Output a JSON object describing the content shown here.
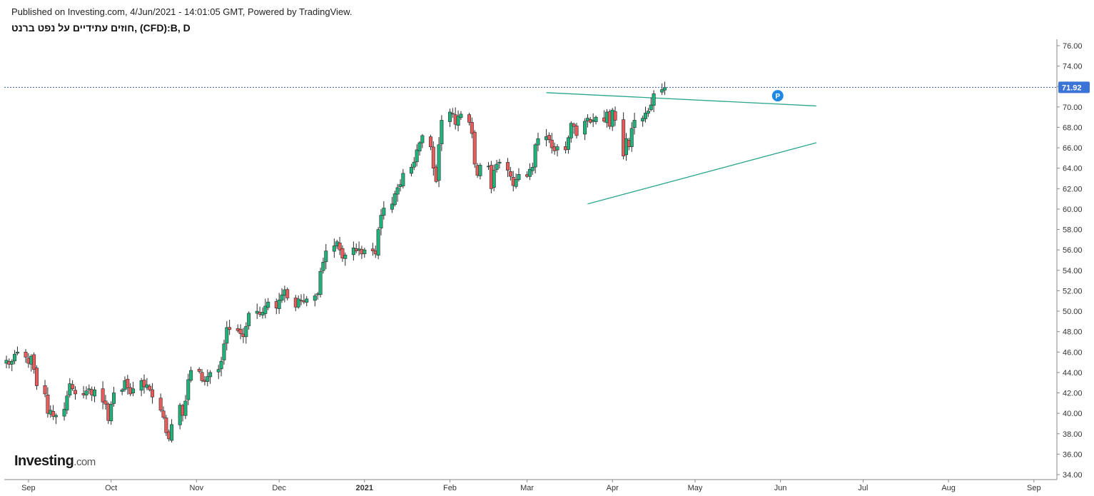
{
  "header": {
    "published": "Published on Investing.com, 4/Jun/2021 - 14:01:05 GMT, Powered by TradingView.",
    "symbol": "חוזים עתידיים על נפט ברנט, (CFD):B, D"
  },
  "logo": {
    "main": "Investing",
    "suffix": ".com"
  },
  "chart_data": {
    "type": "candlestick",
    "title": "חוזים עתידיים על נפט ברנט, (CFD):B, D",
    "y_ticks": [
      "34.00",
      "36.00",
      "38.00",
      "40.00",
      "42.00",
      "44.00",
      "46.00",
      "48.00",
      "50.00",
      "52.00",
      "54.00",
      "56.00",
      "58.00",
      "60.00",
      "62.00",
      "64.00",
      "66.00",
      "68.00",
      "70.00",
      "72.00",
      "74.00",
      "76.00"
    ],
    "ylim": [
      33.5,
      77
    ],
    "x_ticks": [
      "Sep",
      "Oct",
      "Nov",
      "Dec",
      "2021",
      "Feb",
      "Mar",
      "Apr",
      "May",
      "Jun",
      "Jul",
      "Aug",
      "Sep"
    ],
    "x_start": "2020-08-24",
    "last_price": "71.92",
    "colors": {
      "up": "#1fb27a",
      "down": "#ea5b5b",
      "trendline": "#2aa58e",
      "price_line": "#3a5fa8",
      "price_tag": "#3b73d6"
    },
    "trendlines": [
      {
        "name": "upper-resistance",
        "from": [
          "2021-03-08",
          71.4
        ],
        "to": [
          "2021-06-14",
          70.1
        ]
      },
      {
        "name": "lower-support",
        "from": [
          "2021-03-23",
          60.5
        ],
        "to": [
          "2021-06-14",
          66.5
        ]
      }
    ],
    "marker": {
      "label": "P",
      "date": "2021-05-31",
      "value": 71.1
    },
    "closes": [
      45.2,
      44.8,
      45.1,
      45.8,
      46.0,
      45.5,
      44.9,
      45.6,
      44.3,
      42.7,
      41.9,
      40.0,
      40.3,
      39.7,
      39.8,
      40.4,
      41.7,
      42.9,
      42.4,
      41.9,
      41.8,
      42.2,
      42.4,
      41.8,
      42.3,
      41.1,
      40.9,
      39.3,
      40.9,
      42.0,
      42.3,
      43.2,
      42.5,
      41.9,
      42.4,
      43.2,
      42.6,
      42.8,
      42.3,
      41.6,
      40.3,
      39.6,
      38.1,
      37.5,
      38.9,
      40.8,
      39.8,
      41.2,
      43.3,
      44.2,
      44.1,
      43.2,
      43.1,
      43.6,
      44.0,
      44.3,
      45.1,
      46.8,
      48.4,
      48.2,
      48.1,
      47.8,
      47.5,
      48.5,
      49.8,
      50.0,
      49.7,
      49.9,
      50.5,
      50.9,
      50.3,
      51.1,
      51.6,
      52.1,
      51.3,
      50.4,
      51.2,
      51.0,
      50.9,
      51.2,
      51.5,
      51.7,
      53.9,
      54.8,
      55.9,
      56.4,
      56.8,
      56.0,
      55.2,
      55.5,
      56.2,
      55.9,
      56.1,
      55.6,
      56.0,
      55.9,
      55.6,
      58.0,
      59.4,
      60.1,
      60.5,
      61.5,
      62.1,
      62.4,
      63.5,
      64.1,
      64.6,
      65.8,
      66.5,
      67.2,
      66.1,
      64.0,
      62.7,
      66.3,
      68.7,
      69.5,
      69.3,
      68.3,
      69.1,
      69.3,
      68.5,
      67.4,
      64.4,
      63.3,
      64.3,
      64.2,
      62.0,
      63.8,
      64.4,
      64.6,
      63.8,
      63.2,
      62.3,
      62.9,
      63.4,
      63.2,
      63.9,
      64.1,
      66.3,
      66.9,
      67.1,
      66.8,
      66.0,
      65.7,
      66.1,
      65.8,
      67.0,
      68.4,
      68.1,
      67.2,
      68.6,
      68.9,
      68.5,
      68.7,
      69.0,
      68.6,
      69.5,
      68.1,
      69.7,
      68.7,
      65.2,
      66.9,
      66.1,
      67.9,
      68.7,
      68.9,
      69.4,
      69.6,
      70.2,
      71.3,
      71.7,
      71.9
    ]
  }
}
